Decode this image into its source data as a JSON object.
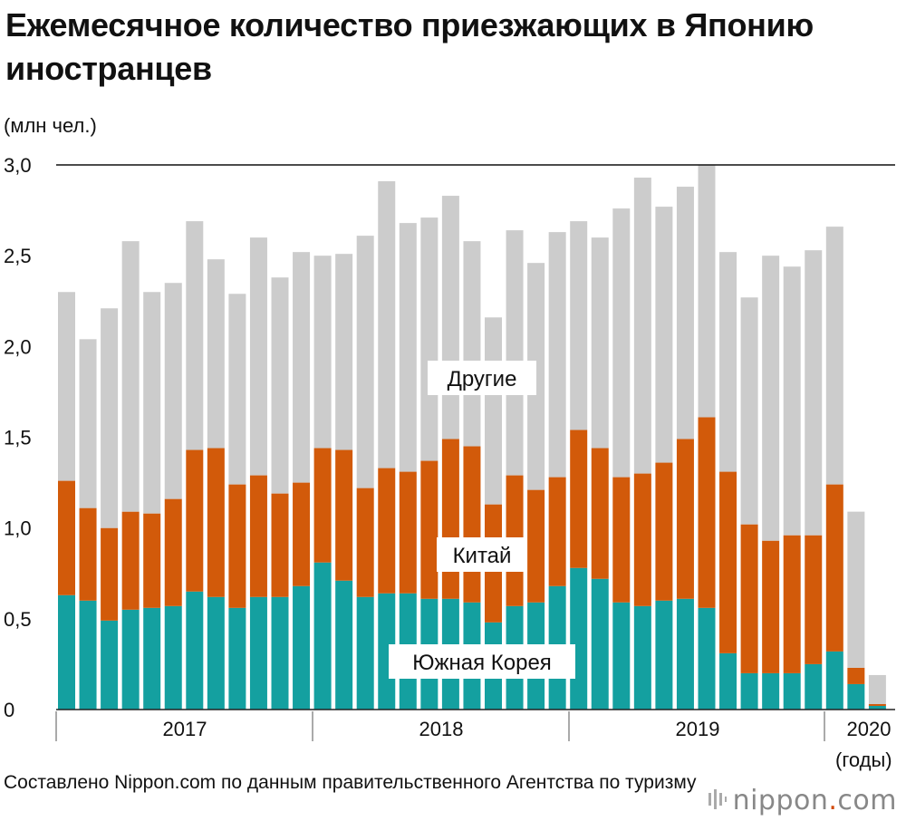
{
  "title": "Ежемесячное количество приезжающих в Японию иностранцев",
  "unit": "(млн чел.)",
  "years_unit": "(годы)",
  "source": "Составлено Nippon.com по данным правительственного Агентства по туризму",
  "logo": {
    "name": "nippon",
    "dot": ".",
    "suffix": "com"
  },
  "colors": {
    "korea": "#14a0a0",
    "china": "#d25a0a",
    "other": "#cccccc"
  },
  "chart_data": {
    "type": "bar",
    "stacked": true,
    "ylim": [
      0,
      3.0
    ],
    "yticks": [
      "0",
      "0,5",
      "1,0",
      "1,5",
      "2,0",
      "2,5",
      "3,0"
    ],
    "years": [
      "2017",
      "2018",
      "2019",
      "2020"
    ],
    "series_labels": {
      "other": "Другие",
      "china": "Китай",
      "korea": "Южная Корея"
    },
    "categories": [
      "2017-01",
      "2017-02",
      "2017-03",
      "2017-04",
      "2017-05",
      "2017-06",
      "2017-07",
      "2017-08",
      "2017-09",
      "2017-10",
      "2017-11",
      "2017-12",
      "2018-01",
      "2018-02",
      "2018-03",
      "2018-04",
      "2018-05",
      "2018-06",
      "2018-07",
      "2018-08",
      "2018-09",
      "2018-10",
      "2018-11",
      "2018-12",
      "2019-01",
      "2019-02",
      "2019-03",
      "2019-04",
      "2019-05",
      "2019-06",
      "2019-07",
      "2019-08",
      "2019-09",
      "2019-10",
      "2019-11",
      "2019-12",
      "2020-01",
      "2020-02",
      "2020-03"
    ],
    "series": [
      {
        "name": "Южная Корея",
        "key": "korea",
        "values": [
          0.63,
          0.6,
          0.49,
          0.55,
          0.56,
          0.57,
          0.65,
          0.62,
          0.56,
          0.62,
          0.62,
          0.68,
          0.81,
          0.71,
          0.62,
          0.64,
          0.64,
          0.61,
          0.61,
          0.59,
          0.48,
          0.57,
          0.59,
          0.68,
          0.78,
          0.72,
          0.59,
          0.57,
          0.6,
          0.61,
          0.56,
          0.31,
          0.2,
          0.2,
          0.2,
          0.25,
          0.32,
          0.14,
          0.02
        ]
      },
      {
        "name": "Китай",
        "key": "china",
        "values": [
          0.63,
          0.51,
          0.51,
          0.54,
          0.52,
          0.59,
          0.78,
          0.82,
          0.68,
          0.67,
          0.57,
          0.57,
          0.63,
          0.72,
          0.6,
          0.69,
          0.67,
          0.76,
          0.88,
          0.86,
          0.65,
          0.72,
          0.62,
          0.6,
          0.76,
          0.72,
          0.69,
          0.73,
          0.76,
          0.88,
          1.05,
          1.0,
          0.82,
          0.73,
          0.76,
          0.71,
          0.92,
          0.09,
          0.01
        ]
      },
      {
        "name": "Другие",
        "key": "other",
        "values": [
          1.04,
          0.93,
          1.21,
          1.49,
          1.22,
          1.19,
          1.26,
          1.04,
          1.05,
          1.31,
          1.19,
          1.27,
          1.06,
          1.08,
          1.39,
          1.58,
          1.37,
          1.34,
          1.34,
          1.13,
          1.03,
          1.35,
          1.25,
          1.35,
          1.15,
          1.16,
          1.48,
          1.63,
          1.41,
          1.39,
          1.39,
          1.21,
          1.25,
          1.57,
          1.48,
          1.57,
          1.42,
          0.86,
          0.16
        ]
      }
    ]
  }
}
